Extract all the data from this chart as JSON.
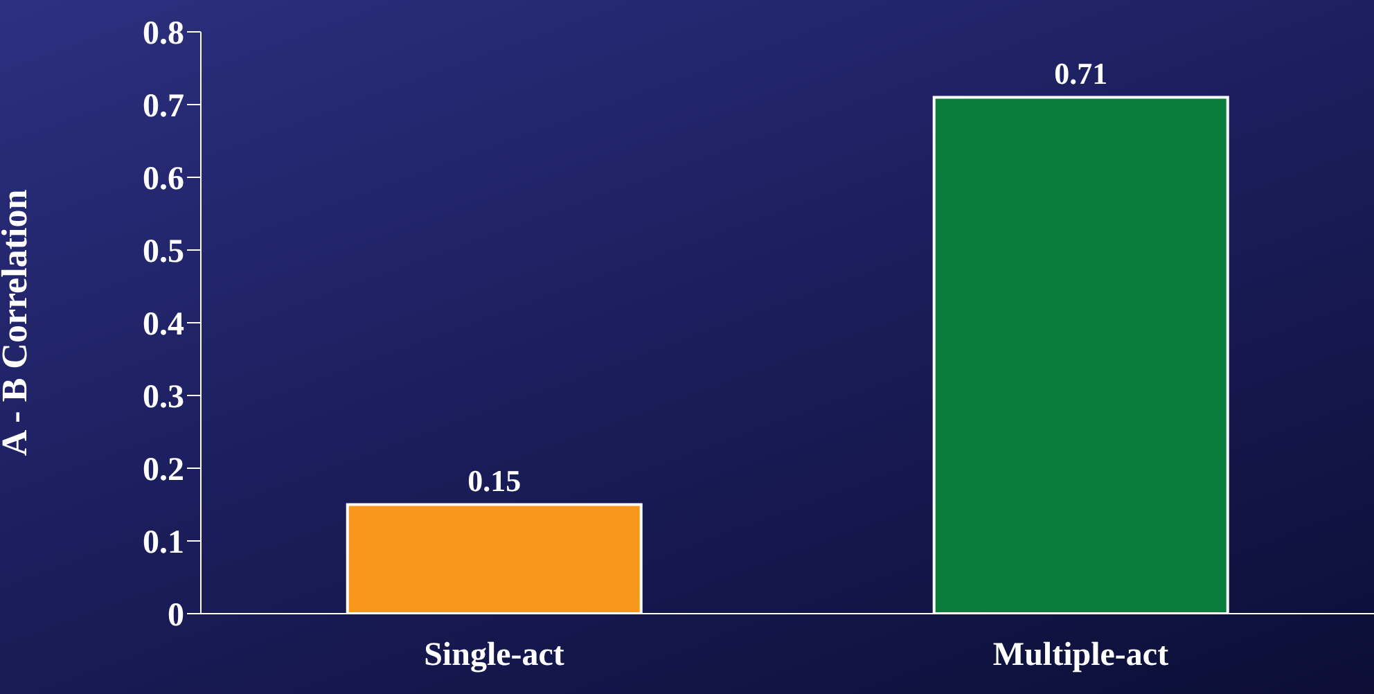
{
  "chart_data": {
    "type": "bar",
    "ylabel": "A - B Correlation",
    "categories": [
      "Single-act",
      "Multiple-act"
    ],
    "values": [
      0.15,
      0.71
    ],
    "colors": [
      "#f7981d",
      "#0a7d3c"
    ],
    "ylim": [
      0,
      0.8
    ],
    "yticks": [
      0,
      0.1,
      0.2,
      0.3,
      0.4,
      0.5,
      0.6,
      0.7,
      0.8
    ],
    "data_labels": true,
    "grid": false,
    "legend": false
  }
}
